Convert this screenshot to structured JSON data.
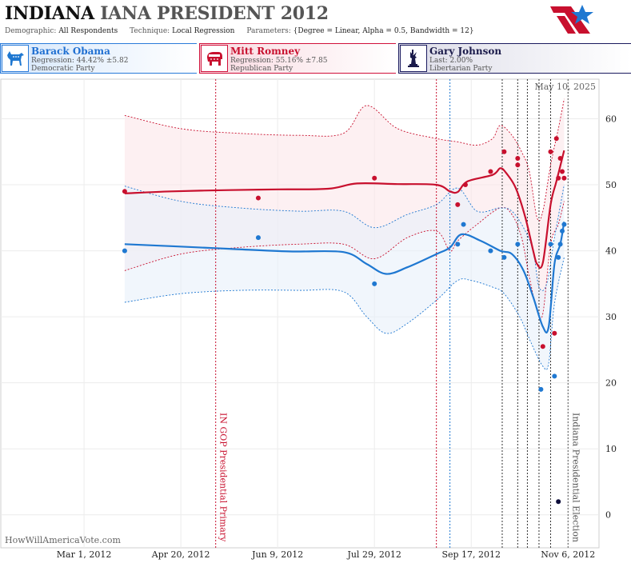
{
  "header": {
    "title_part1": "INDIANA",
    "title_part2": "IANA PRESIDENT 2012",
    "demographic_label": "Demographic:",
    "demographic_value": "All Respondents",
    "technique_label": "Technique:",
    "technique_value": "Local Regression",
    "parameters_label": "Parameters:",
    "parameters_value": "{Degree = Linear, Alpha = 0.5, Bandwidth = 12}"
  },
  "candidates": [
    {
      "name": "Barack Obama",
      "stat": "Regression: 44.42% ±5.82",
      "party": "Democratic Party",
      "icon": "donkey-icon",
      "color": "#1f78d1"
    },
    {
      "name": "Mitt Romney",
      "stat": "Regression: 55.16% ±7.85",
      "party": "Republican Party",
      "icon": "elephant-icon",
      "color": "#c8102e"
    },
    {
      "name": "Gary Johnson",
      "stat": "Last: 2.00%",
      "party": "Libertarian Party",
      "icon": "statue-of-liberty-icon",
      "color": "#1a1a4a"
    }
  ],
  "chart_data": {
    "type": "line",
    "title": "INDIANA IANA PRESIDENT 2012",
    "date_stamp": "May 10, 2025",
    "watermark": "HowWillAmericaVote.com",
    "x_range": [
      "2012-01-18",
      "2012-11-22"
    ],
    "ylim": [
      -5,
      66
    ],
    "yticks": [
      0,
      10,
      20,
      30,
      40,
      50,
      60
    ],
    "xticks": [
      {
        "date": "2012-03-01",
        "label": "Mar 1, 2012"
      },
      {
        "date": "2012-04-20",
        "label": "Apr 20, 2012"
      },
      {
        "date": "2012-06-09",
        "label": "Jun 9, 2012"
      },
      {
        "date": "2012-07-29",
        "label": "Jul 29, 2012"
      },
      {
        "date": "2012-09-17",
        "label": "Sep 17, 2012"
      },
      {
        "date": "2012-11-06",
        "label": "Nov 6, 2012"
      }
    ],
    "grid": true,
    "events": [
      {
        "date": "2012-05-08",
        "label": "IN GOP Presidential Primary",
        "color": "#c8102e"
      },
      {
        "date": "2012-11-06",
        "label": "Indiana Presidential Election",
        "color": "#555555"
      }
    ],
    "convention_lines": [
      {
        "date": "2012-08-30",
        "color": "#c8102e"
      },
      {
        "date": "2012-09-06",
        "color": "#1f78d1"
      }
    ],
    "debate_lines": [
      "2012-10-03",
      "2012-10-11",
      "2012-10-16",
      "2012-10-22",
      "2012-10-28"
    ],
    "series": [
      {
        "name": "Mitt Romney",
        "color": "#c8102e",
        "band_color": "#fbe6ea",
        "line": [
          {
            "x": "2012-03-22",
            "y": 48.7
          },
          {
            "x": "2012-04-15",
            "y": 49.0
          },
          {
            "x": "2012-05-15",
            "y": 49.2
          },
          {
            "x": "2012-06-09",
            "y": 49.3
          },
          {
            "x": "2012-07-05",
            "y": 49.4
          },
          {
            "x": "2012-07-20",
            "y": 50.2
          },
          {
            "x": "2012-08-10",
            "y": 50.1
          },
          {
            "x": "2012-08-30",
            "y": 50.0
          },
          {
            "x": "2012-09-06",
            "y": 49.0
          },
          {
            "x": "2012-09-10",
            "y": 48.9
          },
          {
            "x": "2012-09-15",
            "y": 50.5
          },
          {
            "x": "2012-09-28",
            "y": 51.5
          },
          {
            "x": "2012-10-02",
            "y": 52.5
          },
          {
            "x": "2012-10-05",
            "y": 51.8
          },
          {
            "x": "2012-10-10",
            "y": 49.5
          },
          {
            "x": "2012-10-15",
            "y": 45.0
          },
          {
            "x": "2012-10-19",
            "y": 40.0
          },
          {
            "x": "2012-10-21",
            "y": 38.0
          },
          {
            "x": "2012-10-24",
            "y": 38.2
          },
          {
            "x": "2012-10-28",
            "y": 47.0
          },
          {
            "x": "2012-10-31",
            "y": 50.5
          },
          {
            "x": "2012-11-04",
            "y": 55.2
          }
        ],
        "upper": [
          {
            "x": "2012-03-22",
            "y": 60.5
          },
          {
            "x": "2012-04-20",
            "y": 58.5
          },
          {
            "x": "2012-05-20",
            "y": 57.8
          },
          {
            "x": "2012-06-20",
            "y": 57.5
          },
          {
            "x": "2012-07-13",
            "y": 57.8
          },
          {
            "x": "2012-07-25",
            "y": 62.0
          },
          {
            "x": "2012-08-10",
            "y": 58.5
          },
          {
            "x": "2012-08-30",
            "y": 57.0
          },
          {
            "x": "2012-09-10",
            "y": 56.5
          },
          {
            "x": "2012-09-20",
            "y": 56.0
          },
          {
            "x": "2012-09-28",
            "y": 57.0
          },
          {
            "x": "2012-10-02",
            "y": 59.0
          },
          {
            "x": "2012-10-08",
            "y": 57.5
          },
          {
            "x": "2012-10-13",
            "y": 55.0
          },
          {
            "x": "2012-10-17",
            "y": 52.0
          },
          {
            "x": "2012-10-21",
            "y": 45.0
          },
          {
            "x": "2012-10-24",
            "y": 46.0
          },
          {
            "x": "2012-10-28",
            "y": 53.0
          },
          {
            "x": "2012-11-01",
            "y": 58.5
          },
          {
            "x": "2012-11-04",
            "y": 63.0
          }
        ],
        "lower": [
          {
            "x": "2012-03-22",
            "y": 37.0
          },
          {
            "x": "2012-04-20",
            "y": 39.5
          },
          {
            "x": "2012-05-20",
            "y": 40.5
          },
          {
            "x": "2012-06-20",
            "y": 41.0
          },
          {
            "x": "2012-07-13",
            "y": 41.0
          },
          {
            "x": "2012-07-29",
            "y": 38.8
          },
          {
            "x": "2012-08-15",
            "y": 42.0
          },
          {
            "x": "2012-08-30",
            "y": 43.0
          },
          {
            "x": "2012-09-06",
            "y": 40.0
          },
          {
            "x": "2012-09-10",
            "y": 41.5
          },
          {
            "x": "2012-09-20",
            "y": 44.0
          },
          {
            "x": "2012-10-02",
            "y": 46.5
          },
          {
            "x": "2012-10-08",
            "y": 45.5
          },
          {
            "x": "2012-10-13",
            "y": 42.0
          },
          {
            "x": "2012-10-17",
            "y": 36.0
          },
          {
            "x": "2012-10-21",
            "y": 31.0
          },
          {
            "x": "2012-10-24",
            "y": 30.5
          },
          {
            "x": "2012-10-28",
            "y": 41.0
          },
          {
            "x": "2012-11-01",
            "y": 44.0
          },
          {
            "x": "2012-11-04",
            "y": 47.5
          }
        ],
        "points": [
          {
            "x": "2012-03-22",
            "y": 49
          },
          {
            "x": "2012-05-30",
            "y": 48
          },
          {
            "x": "2012-07-29",
            "y": 51
          },
          {
            "x": "2012-09-10",
            "y": 47
          },
          {
            "x": "2012-09-14",
            "y": 50
          },
          {
            "x": "2012-09-27",
            "y": 52
          },
          {
            "x": "2012-10-04",
            "y": 55
          },
          {
            "x": "2012-10-11",
            "y": 53
          },
          {
            "x": "2012-10-11",
            "y": 54
          },
          {
            "x": "2012-10-24",
            "y": 25.5
          },
          {
            "x": "2012-10-28",
            "y": 55
          },
          {
            "x": "2012-10-30",
            "y": 27.5
          },
          {
            "x": "2012-10-31",
            "y": 57
          },
          {
            "x": "2012-11-01",
            "y": 51
          },
          {
            "x": "2012-11-02",
            "y": 54
          },
          {
            "x": "2012-11-03",
            "y": 52
          },
          {
            "x": "2012-11-04",
            "y": 51
          }
        ]
      },
      {
        "name": "Barack Obama",
        "color": "#1f78d1",
        "band_color": "#e8f0fa",
        "line": [
          {
            "x": "2012-03-22",
            "y": 41.0
          },
          {
            "x": "2012-04-15",
            "y": 40.7
          },
          {
            "x": "2012-05-15",
            "y": 40.3
          },
          {
            "x": "2012-06-15",
            "y": 39.9
          },
          {
            "x": "2012-07-13",
            "y": 39.8
          },
          {
            "x": "2012-07-25",
            "y": 38.0
          },
          {
            "x": "2012-08-04",
            "y": 36.5
          },
          {
            "x": "2012-08-15",
            "y": 37.5
          },
          {
            "x": "2012-08-30",
            "y": 39.5
          },
          {
            "x": "2012-09-06",
            "y": 40.5
          },
          {
            "x": "2012-09-12",
            "y": 42.5
          },
          {
            "x": "2012-09-22",
            "y": 41.5
          },
          {
            "x": "2012-10-02",
            "y": 40.0
          },
          {
            "x": "2012-10-08",
            "y": 39.5
          },
          {
            "x": "2012-10-14",
            "y": 37.0
          },
          {
            "x": "2012-10-19",
            "y": 33.0
          },
          {
            "x": "2012-10-24",
            "y": 28.5
          },
          {
            "x": "2012-10-27",
            "y": 28.5
          },
          {
            "x": "2012-10-30",
            "y": 38.0
          },
          {
            "x": "2012-11-02",
            "y": 41.0
          },
          {
            "x": "2012-11-04",
            "y": 44.4
          }
        ],
        "upper": [
          {
            "x": "2012-03-22",
            "y": 49.8
          },
          {
            "x": "2012-04-20",
            "y": 47.5
          },
          {
            "x": "2012-05-20",
            "y": 46.5
          },
          {
            "x": "2012-06-20",
            "y": 46.0
          },
          {
            "x": "2012-07-13",
            "y": 46.0
          },
          {
            "x": "2012-07-29",
            "y": 43.5
          },
          {
            "x": "2012-08-15",
            "y": 45.5
          },
          {
            "x": "2012-08-30",
            "y": 47.0
          },
          {
            "x": "2012-09-10",
            "y": 49.5
          },
          {
            "x": "2012-09-20",
            "y": 46.0
          },
          {
            "x": "2012-10-02",
            "y": 46.5
          },
          {
            "x": "2012-10-08",
            "y": 46.0
          },
          {
            "x": "2012-10-14",
            "y": 43.5
          },
          {
            "x": "2012-10-19",
            "y": 40.0
          },
          {
            "x": "2012-10-22",
            "y": 34.5
          },
          {
            "x": "2012-10-26",
            "y": 35.0
          },
          {
            "x": "2012-10-30",
            "y": 42.0
          },
          {
            "x": "2012-11-04",
            "y": 50.0
          }
        ],
        "lower": [
          {
            "x": "2012-03-22",
            "y": 32.2
          },
          {
            "x": "2012-04-20",
            "y": 33.5
          },
          {
            "x": "2012-05-20",
            "y": 34.0
          },
          {
            "x": "2012-06-20",
            "y": 34.0
          },
          {
            "x": "2012-07-13",
            "y": 33.8
          },
          {
            "x": "2012-07-25",
            "y": 30.0
          },
          {
            "x": "2012-08-04",
            "y": 27.5
          },
          {
            "x": "2012-08-15",
            "y": 29.0
          },
          {
            "x": "2012-08-30",
            "y": 32.5
          },
          {
            "x": "2012-09-10",
            "y": 35.5
          },
          {
            "x": "2012-09-17",
            "y": 35.5
          },
          {
            "x": "2012-09-28",
            "y": 34.5
          },
          {
            "x": "2012-10-04",
            "y": 33.5
          },
          {
            "x": "2012-10-12",
            "y": 30.0
          },
          {
            "x": "2012-10-18",
            "y": 26.0
          },
          {
            "x": "2012-10-24",
            "y": 22.5
          },
          {
            "x": "2012-10-27",
            "y": 23.0
          },
          {
            "x": "2012-10-30",
            "y": 32.0
          },
          {
            "x": "2012-11-04",
            "y": 39.0
          }
        ],
        "points": [
          {
            "x": "2012-03-22",
            "y": 40
          },
          {
            "x": "2012-05-30",
            "y": 42
          },
          {
            "x": "2012-07-29",
            "y": 35
          },
          {
            "x": "2012-09-10",
            "y": 41
          },
          {
            "x": "2012-09-13",
            "y": 44
          },
          {
            "x": "2012-09-27",
            "y": 40
          },
          {
            "x": "2012-10-04",
            "y": 39
          },
          {
            "x": "2012-10-11",
            "y": 41
          },
          {
            "x": "2012-10-23",
            "y": 19
          },
          {
            "x": "2012-10-28",
            "y": 41
          },
          {
            "x": "2012-10-30",
            "y": 21
          },
          {
            "x": "2012-11-01",
            "y": 39
          },
          {
            "x": "2012-11-02",
            "y": 41
          },
          {
            "x": "2012-11-03",
            "y": 43
          },
          {
            "x": "2012-11-04",
            "y": 44
          }
        ]
      },
      {
        "name": "Gary Johnson",
        "color": "#0d0d3a",
        "points": [
          {
            "x": "2012-11-01",
            "y": 2
          }
        ]
      }
    ]
  }
}
